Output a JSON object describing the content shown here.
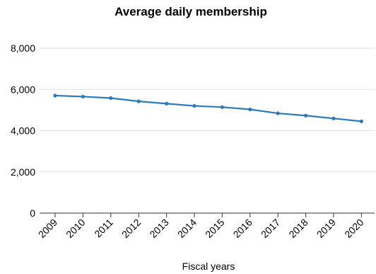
{
  "chart_data": {
    "type": "line",
    "title": "Average daily membership",
    "xlabel": "Fiscal years",
    "ylabel": "",
    "categories": [
      "2009",
      "2010",
      "2011",
      "2012",
      "2013",
      "2014",
      "2015",
      "2016",
      "2017",
      "2018",
      "2019",
      "2020"
    ],
    "series": [
      {
        "values": [
          5700,
          5650,
          5580,
          5420,
          5310,
          5200,
          5140,
          5030,
          4840,
          4730,
          4590,
          4450
        ],
        "color": "#2e7ab8"
      }
    ],
    "yticks": [
      "0",
      "2,000",
      "4,000",
      "6,000",
      "8,000"
    ],
    "ytick_values": [
      0,
      2000,
      4000,
      6000,
      8000
    ],
    "ylim": [
      0,
      8000
    ],
    "grid": true,
    "legend": "none"
  }
}
